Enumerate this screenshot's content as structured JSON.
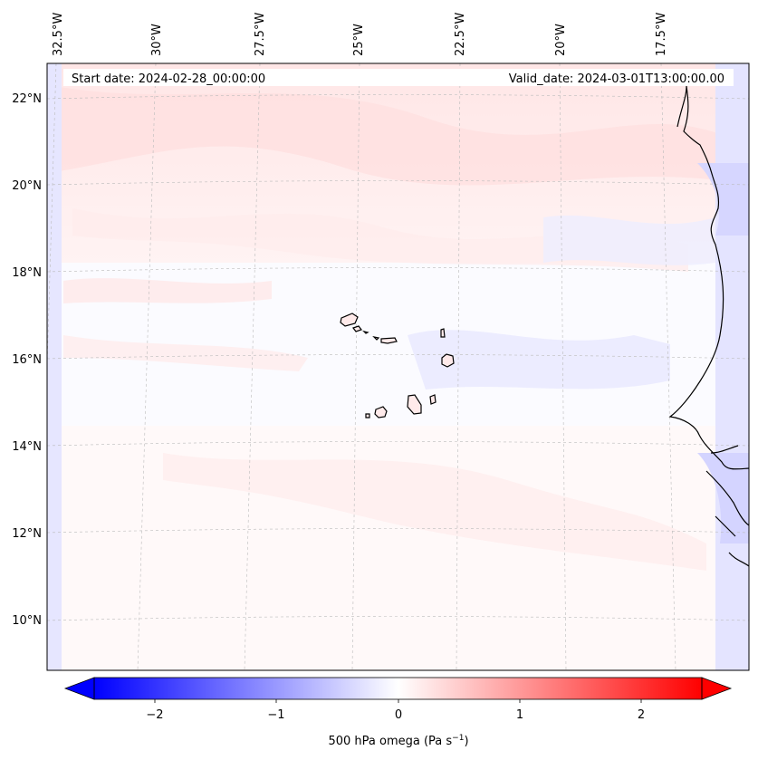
{
  "map": {
    "start_date": "Start date: 2024-02-28_00:00:00",
    "valid_date": "Valid_date: 2024-03-01T13:00:00.00",
    "lon_labels": [
      "32.5°W",
      "30°W",
      "27.5°W",
      "25°W",
      "22.5°W",
      "20°W",
      "17.5°W"
    ],
    "lat_labels": [
      "22°N",
      "20°N",
      "18°N",
      "16°N",
      "14°N",
      "12°N",
      "10°N"
    ],
    "field": "500 hPa omega",
    "field_range": [
      -2.5,
      2.5
    ],
    "colormap": "bwr",
    "projection": "lambert-like (curved graticule)"
  },
  "colorbar": {
    "label_main": "500 hPa omega (Pa s",
    "label_exp": "−1",
    "label_close": ")",
    "ticks": [
      "−2",
      "−1",
      "0",
      "1",
      "2"
    ],
    "colors": {
      "negative": "#0000ff",
      "zero": "#ffffff",
      "positive": "#ff0000"
    }
  }
}
